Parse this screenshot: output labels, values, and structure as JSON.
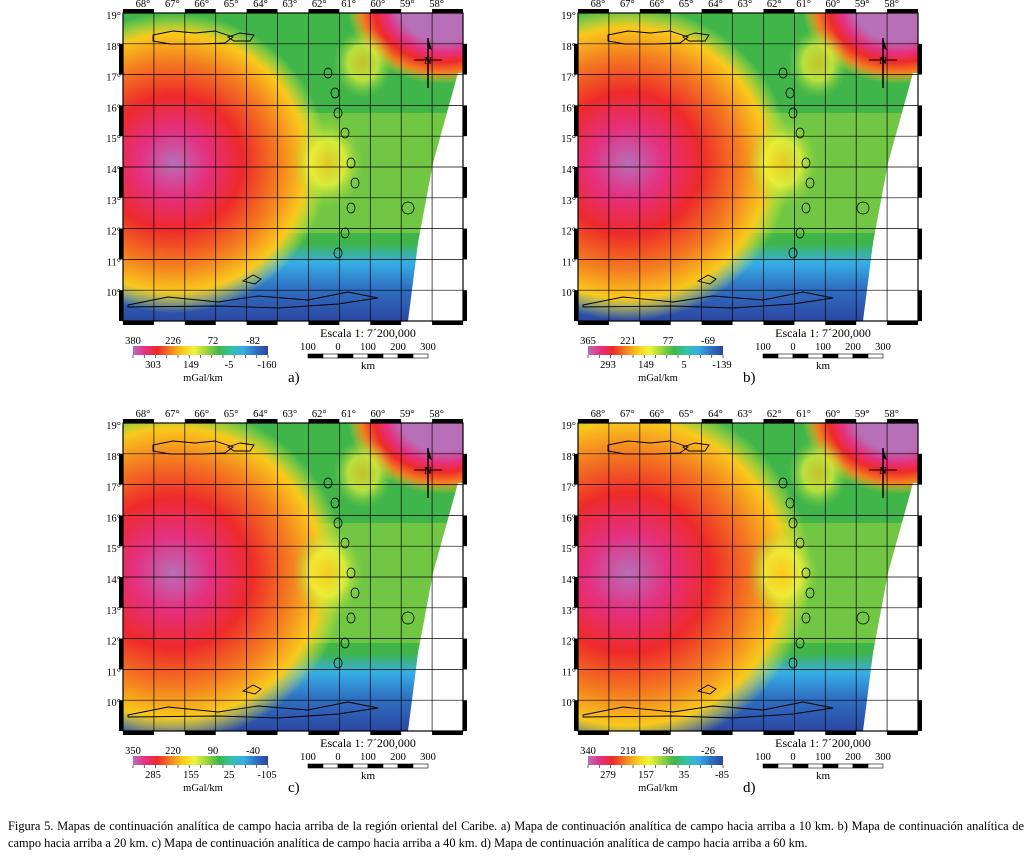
{
  "figure": {
    "caption": "Figura 5. Mapas de continuación analítica de campo hacia arriba de la región oriental del Caribe. a) Mapa de continuación analítica de campo hacia arriba a 10 km. b) Mapa de continuación analítica de campo hacia arriba a 20 km. c) Mapa de continuación analítica de campo hacia arriba a 40 km. d) Mapa de continuación analítica de campo hacia arriba a 60 km."
  },
  "map_common": {
    "lon_labels": [
      "68°",
      "67°",
      "66°",
      "65°",
      "64°",
      "63°",
      "62°",
      "61°",
      "60°",
      "59°",
      "58°"
    ],
    "lat_labels": [
      "19°",
      "18°",
      "17°",
      "16°",
      "15°",
      "14°",
      "13°",
      "12°",
      "11°",
      "10°"
    ],
    "north_symbol": "N",
    "scale_title": "Escala 1:  7´200,000",
    "scale_numbers": [
      "100",
      "0",
      "100",
      "200",
      "300"
    ],
    "scale_unit": "km",
    "palette": [
      "#b76fb7",
      "#e53080",
      "#ee2a2a",
      "#f47c20",
      "#f9c91c",
      "#eef43a",
      "#9ad53e",
      "#3fb54a",
      "#31c3a7",
      "#36aee6",
      "#2f72c3",
      "#2c44a0"
    ]
  },
  "panels": [
    {
      "id": "a",
      "letter": "a)",
      "unit": "mGal/km",
      "colorbar_top": [
        "380",
        "226",
        "72",
        "-82"
      ],
      "colorbar_bottom": [
        "303",
        "149",
        "-5",
        "-160"
      ]
    },
    {
      "id": "b",
      "letter": "b)",
      "unit": "mGal/km",
      "colorbar_top": [
        "365",
        "221",
        "77",
        "-69"
      ],
      "colorbar_bottom": [
        "293",
        "149",
        "5",
        "-139"
      ]
    },
    {
      "id": "c",
      "letter": "c)",
      "unit": "mGal/km",
      "colorbar_top": [
        "350",
        "220",
        "90",
        "-40"
      ],
      "colorbar_bottom": [
        "285",
        "155",
        "25",
        "-105"
      ]
    },
    {
      "id": "d",
      "letter": "d)",
      "unit": "mGal/km",
      "colorbar_top": [
        "340",
        "218",
        "96",
        "-26"
      ],
      "colorbar_bottom": [
        "279",
        "157",
        "35",
        "-85"
      ]
    }
  ]
}
